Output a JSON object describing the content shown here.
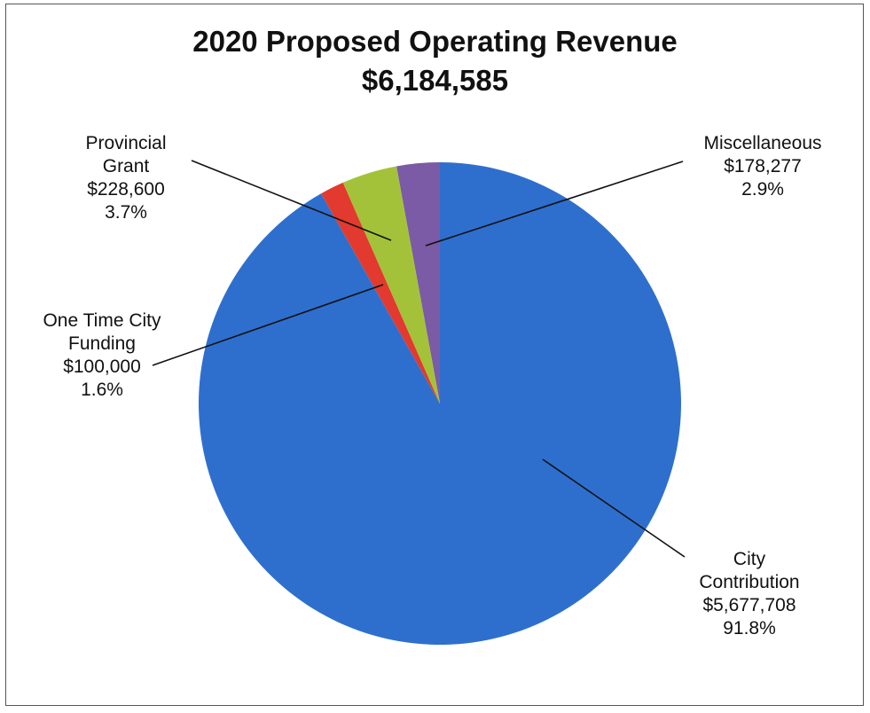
{
  "chart_data": {
    "type": "pie",
    "title": "2020 Proposed Operating Revenue",
    "subtitle": "$6,184,585",
    "slices": [
      {
        "label_lines": [
          "Miscellaneous"
        ],
        "amount": "$178,277",
        "percent_label": "2.9%",
        "value": 178277,
        "color": "#7b5aa6"
      },
      {
        "label_lines": [
          "City",
          "Contribution"
        ],
        "amount": "$5,677,708",
        "percent_label": "91.8%",
        "value": 5677708,
        "color": "#2e6fce"
      },
      {
        "label_lines": [
          "One Time City",
          "Funding"
        ],
        "amount": "$100,000",
        "percent_label": "1.6%",
        "value": 100000,
        "color": "#e23a2e"
      },
      {
        "label_lines": [
          "Provincial",
          "Grant"
        ],
        "amount": "$228,600",
        "percent_label": "3.7%",
        "value": 228600,
        "color": "#a3c23a"
      }
    ]
  }
}
